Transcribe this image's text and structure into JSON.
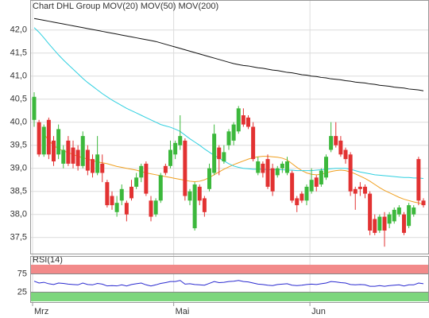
{
  "chart_data": [
    {
      "type": "candlestick",
      "title": "Chart DHL Group",
      "title_color": "#d2703c",
      "categories": [
        "Mrz",
        null,
        null,
        null,
        null,
        null,
        null,
        null,
        null,
        null,
        null,
        null,
        null,
        null,
        null,
        null,
        null,
        null,
        null,
        null,
        null,
        null,
        null,
        null,
        null,
        null,
        null,
        null,
        null,
        "Mai",
        null,
        null,
        null,
        null,
        null,
        null,
        null,
        null,
        null,
        null,
        null,
        null,
        null,
        null,
        null,
        null,
        null,
        null,
        null,
        null,
        null,
        null,
        null,
        null,
        null,
        null,
        null,
        "Jun",
        null,
        null,
        null,
        null,
        null,
        null,
        null,
        null,
        null,
        null,
        null,
        null,
        null,
        null,
        null,
        null,
        null,
        null,
        null,
        null,
        null,
        null,
        null
      ],
      "open": [
        40.05,
        40.0,
        39.3,
        40.05,
        39.6,
        39.3,
        39.1,
        39.6,
        39.45,
        39.4,
        39.05,
        39.4,
        39.2,
        38.9,
        39.1,
        38.7,
        38.4,
        38.05,
        38.3,
        38.25,
        38.6,
        38.6,
        38.8,
        39.1,
        38.3,
        38.0,
        38.3,
        39.05,
        39.05,
        39.3,
        39.5,
        39.6,
        38.3,
        37.7,
        38.6,
        38.35,
        38.55,
        38.9,
        39.45,
        39.15,
        39.5,
        39.6,
        39.8,
        40.15,
        40.1,
        39.9,
        38.9,
        39.1,
        39.2,
        39.0,
        38.85,
        39.0,
        38.9,
        38.9,
        38.35,
        38.45,
        38.3,
        38.5,
        38.8,
        38.65,
        38.8,
        39.4,
        39.7,
        39.6,
        39.4,
        39.3,
        38.55,
        38.6,
        38.6,
        38.45,
        37.9,
        37.65,
        37.95,
        37.8,
        37.85,
        38.0,
        38.0,
        37.75,
        38.0,
        39.2,
        38.3
      ],
      "high": [
        40.65,
        40.05,
        39.95,
        40.1,
        39.7,
        39.95,
        39.5,
        39.7,
        39.6,
        39.5,
        39.8,
        39.5,
        39.3,
        39.7,
        39.3,
        38.75,
        38.5,
        38.4,
        38.65,
        38.3,
        38.75,
        38.9,
        39.1,
        39.15,
        38.4,
        38.35,
        38.9,
        39.1,
        39.6,
        39.6,
        40.15,
        39.65,
        38.55,
        38.7,
        38.65,
        38.4,
        39.1,
        39.95,
        39.5,
        39.5,
        39.85,
        40.0,
        40.35,
        40.3,
        40.15,
        40.0,
        39.25,
        39.15,
        39.3,
        39.1,
        39.05,
        39.15,
        39.25,
        38.95,
        38.4,
        38.5,
        38.65,
        39.0,
        38.85,
        39.0,
        39.3,
        40.0,
        40.0,
        39.7,
        39.45,
        39.35,
        38.6,
        38.7,
        38.65,
        38.5,
        38.0,
        38.0,
        38.05,
        38.05,
        38.15,
        38.2,
        38.05,
        38.25,
        38.2,
        39.25,
        38.35
      ],
      "low": [
        39.9,
        39.25,
        39.25,
        39.2,
        39.05,
        39.2,
        39.0,
        39.05,
        39.0,
        38.95,
        39.0,
        38.85,
        38.8,
        38.85,
        38.7,
        38.15,
        38.1,
        37.95,
        38.2,
        37.85,
        38.3,
        38.55,
        38.7,
        38.4,
        37.85,
        37.95,
        38.25,
        38.85,
        39.0,
        39.2,
        39.4,
        38.3,
        38.2,
        37.65,
        38.2,
        37.95,
        38.5,
        38.85,
        38.85,
        39.1,
        39.4,
        39.5,
        39.75,
        39.9,
        39.85,
        39.15,
        38.85,
        38.8,
        38.55,
        38.4,
        38.8,
        38.9,
        38.85,
        38.25,
        38.05,
        38.25,
        38.2,
        38.45,
        38.5,
        38.6,
        38.75,
        39.35,
        39.45,
        39.25,
        39.1,
        38.4,
        38.1,
        38.4,
        38.35,
        37.55,
        37.55,
        37.6,
        37.3,
        37.7,
        37.8,
        37.95,
        37.55,
        37.7,
        37.95,
        38.2,
        38.15
      ],
      "close": [
        40.55,
        39.3,
        39.9,
        39.3,
        39.15,
        39.85,
        39.4,
        39.1,
        39.1,
        39.05,
        39.7,
        38.95,
        38.9,
        39.3,
        38.9,
        38.2,
        38.2,
        38.25,
        38.55,
        38.0,
        38.35,
        38.8,
        39.05,
        38.45,
        37.95,
        38.3,
        38.85,
        38.9,
        39.4,
        39.55,
        39.7,
        38.4,
        38.5,
        38.65,
        38.3,
        38.05,
        39.0,
        39.75,
        39.2,
        39.35,
        39.8,
        39.95,
        40.3,
        39.95,
        39.9,
        39.2,
        39.15,
        38.9,
        38.6,
        38.5,
        39.0,
        39.1,
        39.15,
        38.3,
        38.2,
        38.3,
        38.6,
        38.75,
        38.6,
        38.95,
        39.25,
        39.7,
        39.5,
        39.3,
        39.2,
        38.5,
        38.45,
        38.55,
        38.45,
        37.65,
        37.6,
        37.95,
        37.65,
        38.0,
        38.1,
        38.15,
        37.6,
        38.2,
        38.15,
        38.3,
        38.2
      ],
      "up_color": "#3cb83c",
      "down_color": "#e23232",
      "ylim": [
        37.15,
        42.65
      ],
      "yticks": [
        {
          "value": 37.5,
          "label": "37,5"
        },
        {
          "value": 38,
          "label": "38,0"
        },
        {
          "value": 38.5,
          "label": "38,5"
        },
        {
          "value": 39,
          "label": "39,0"
        },
        {
          "value": 39.5,
          "label": "39,5"
        },
        {
          "value": 40,
          "label": "40,0"
        },
        {
          "value": 40.5,
          "label": "40,5"
        },
        {
          "value": 41,
          "label": "41,0"
        },
        {
          "value": 41.5,
          "label": "41,5"
        },
        {
          "value": 42,
          "label": "42,0"
        }
      ],
      "grid": true,
      "series": [
        {
          "name": "MOV(20)",
          "color": "#f0a020",
          "values": [
            null,
            null,
            39.75,
            39.6,
            39.5,
            39.42,
            39.38,
            39.34,
            39.3,
            39.26,
            39.23,
            39.2,
            39.17,
            39.14,
            39.12,
            39.1,
            39.07,
            39.04,
            39.02,
            39.0,
            38.98,
            38.96,
            38.93,
            38.9,
            38.88,
            38.86,
            38.84,
            38.82,
            38.8,
            38.78,
            38.76,
            38.74,
            38.72,
            38.71,
            38.72,
            38.75,
            38.8,
            38.86,
            38.92,
            38.98,
            39.03,
            39.08,
            39.12,
            39.16,
            39.2,
            39.23,
            39.25,
            39.26,
            39.26,
            39.25,
            39.24,
            39.22,
            39.18,
            39.1,
            39.02,
            38.95,
            38.9,
            38.87,
            38.86,
            38.87,
            38.9,
            38.93,
            38.95,
            38.96,
            38.95,
            38.92,
            38.88,
            38.83,
            38.78,
            38.72,
            38.65,
            38.58,
            38.52,
            38.47,
            38.42,
            38.37,
            38.33,
            38.3,
            38.27,
            38.25,
            38.22
          ]
        },
        {
          "name": "MOV(50)",
          "color": "#30d0e0",
          "values": [
            42.05,
            41.95,
            41.83,
            41.7,
            41.58,
            41.46,
            41.35,
            41.25,
            41.15,
            41.05,
            40.95,
            40.86,
            40.78,
            40.7,
            40.62,
            40.55,
            40.48,
            40.42,
            40.36,
            40.3,
            40.25,
            40.2,
            40.15,
            40.1,
            40.05,
            40.0,
            39.95,
            39.92,
            39.89,
            39.85,
            39.8,
            39.72,
            39.64,
            39.57,
            39.5,
            39.42,
            39.35,
            39.28,
            39.22,
            39.16,
            39.1,
            39.05,
            39.02,
            39.0,
            38.99,
            38.98,
            38.98,
            38.98,
            38.97,
            38.97,
            38.97,
            38.97,
            38.96,
            38.96,
            38.95,
            38.95,
            38.95,
            38.95,
            38.96,
            38.97,
            38.98,
            38.99,
            39.0,
            39.0,
            39.0,
            38.98,
            38.95,
            38.92,
            38.9,
            38.88,
            38.86,
            38.85,
            38.84,
            38.83,
            38.82,
            38.81,
            38.8,
            38.8,
            38.79,
            38.79,
            38.78
          ]
        },
        {
          "name": "MOV(200)",
          "color": "#111111",
          "values": [
            42.25,
            42.23,
            42.21,
            42.19,
            42.17,
            42.15,
            42.13,
            42.11,
            42.09,
            42.07,
            42.05,
            42.03,
            42.01,
            41.99,
            41.97,
            41.95,
            41.93,
            41.91,
            41.89,
            41.87,
            41.85,
            41.83,
            41.81,
            41.79,
            41.77,
            41.75,
            41.72,
            41.69,
            41.66,
            41.63,
            41.6,
            41.57,
            41.54,
            41.51,
            41.48,
            41.45,
            41.42,
            41.39,
            41.36,
            41.33,
            41.3,
            41.27,
            41.25,
            41.23,
            41.22,
            41.2,
            41.18,
            41.17,
            41.15,
            41.13,
            41.12,
            41.1,
            41.08,
            41.07,
            41.05,
            41.03,
            41.02,
            41.0,
            40.99,
            40.97,
            40.96,
            40.94,
            40.93,
            40.92,
            40.9,
            40.89,
            40.87,
            40.86,
            40.85,
            40.83,
            40.82,
            40.8,
            40.79,
            40.78,
            40.76,
            40.75,
            40.74,
            40.72,
            40.71,
            40.7,
            40.68
          ]
        }
      ]
    },
    {
      "type": "line",
      "title": "RSI(14)",
      "ylim": [
        0,
        100
      ],
      "yticks": [
        25,
        75
      ],
      "band_colors": [
        "#7dd67d",
        "#f28a8a"
      ],
      "series": [
        {
          "color": "#2a2ad0",
          "values": [
            55,
            50,
            52,
            48,
            46,
            50,
            49,
            47,
            46,
            45,
            50,
            46,
            45,
            49,
            47,
            42,
            43,
            42,
            45,
            42,
            46,
            48,
            50,
            45,
            42,
            45,
            49,
            51,
            54,
            54,
            57,
            47,
            48,
            46,
            45,
            44,
            49,
            54,
            51,
            52,
            54,
            55,
            57,
            54,
            53,
            50,
            47,
            46,
            44,
            43,
            46,
            47,
            48,
            44,
            43,
            44,
            46,
            47,
            46,
            48,
            50,
            54,
            53,
            51,
            50,
            46,
            45,
            46,
            45,
            41,
            41,
            43,
            41,
            43,
            44,
            45,
            42,
            45,
            45,
            50,
            48
          ]
        }
      ]
    }
  ]
}
